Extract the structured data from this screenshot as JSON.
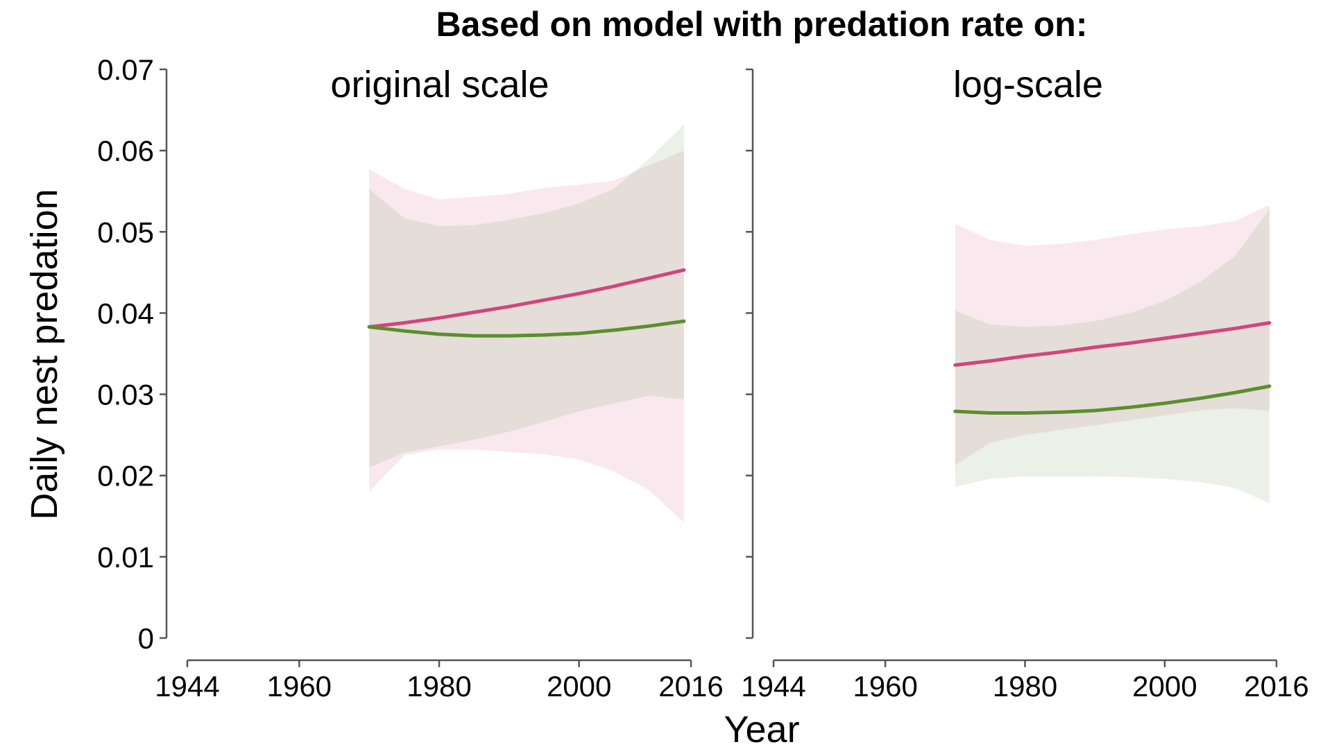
{
  "chart_data": {
    "type": "line",
    "title": "Based on model with predation rate on:",
    "ylabel": "Daily nest predation",
    "xlabel": "Year",
    "ylim": [
      0,
      0.07
    ],
    "xlim": [
      1944,
      2016
    ],
    "y_ticks": [
      "0",
      "0.01",
      "0.02",
      "0.03",
      "0.04",
      "0.05",
      "0.06",
      "0.07"
    ],
    "y_tick_values": [
      0,
      0.01,
      0.02,
      0.03,
      0.04,
      0.05,
      0.06,
      0.07
    ],
    "x_ticks": [
      "1944",
      "1960",
      "1980",
      "2000",
      "2016"
    ],
    "x_tick_values": [
      1944,
      1960,
      1980,
      2000,
      2016
    ],
    "grid": false,
    "colors": {
      "pink_line": "#d0467c",
      "pink_band": "#f9dde9",
      "green_line": "#5a8f2f",
      "green_band": "#e4eedb",
      "axis": "#555555"
    },
    "panels": [
      {
        "label": "original scale",
        "series": [
          {
            "color": "pink",
            "x": [
              1970,
              1975,
              1980,
              1985,
              1990,
              1995,
              2000,
              2005,
              2010,
              2015
            ],
            "y": [
              0.0383,
              0.0388,
              0.0394,
              0.0401,
              0.0408,
              0.0416,
              0.0424,
              0.0433,
              0.0443,
              0.0453
            ],
            "lower": [
              0.018,
              0.0225,
              0.0232,
              0.0232,
              0.0229,
              0.0226,
              0.022,
              0.0205,
              0.0182,
              0.0142
            ],
            "upper": [
              0.0577,
              0.0553,
              0.054,
              0.0543,
              0.0547,
              0.0554,
              0.0558,
              0.0563,
              0.0582,
              0.06
            ]
          },
          {
            "color": "green",
            "x": [
              1970,
              1975,
              1980,
              1985,
              1990,
              1995,
              2000,
              2005,
              2010,
              2015
            ],
            "y": [
              0.0383,
              0.0378,
              0.0374,
              0.0372,
              0.0372,
              0.0373,
              0.0375,
              0.0379,
              0.0384,
              0.039
            ],
            "lower": [
              0.021,
              0.0228,
              0.0236,
              0.0244,
              0.0254,
              0.0266,
              0.0279,
              0.0289,
              0.0298,
              0.0294
            ],
            "upper": [
              0.0553,
              0.0517,
              0.0507,
              0.0508,
              0.0515,
              0.0523,
              0.0535,
              0.0553,
              0.059,
              0.0632
            ]
          }
        ]
      },
      {
        "label": "log-scale",
        "series": [
          {
            "color": "pink",
            "x": [
              1970,
              1975,
              1980,
              1985,
              1990,
              1995,
              2000,
              2005,
              2010,
              2015
            ],
            "y": [
              0.0336,
              0.0341,
              0.0347,
              0.0352,
              0.0358,
              0.0363,
              0.0369,
              0.0375,
              0.0381,
              0.0388
            ],
            "lower": [
              0.0213,
              0.024,
              0.025,
              0.0256,
              0.0262,
              0.0268,
              0.0274,
              0.028,
              0.0283,
              0.028
            ],
            "upper": [
              0.051,
              0.049,
              0.0483,
              0.0485,
              0.049,
              0.0497,
              0.0503,
              0.0507,
              0.0513,
              0.0533
            ]
          },
          {
            "color": "green",
            "x": [
              1970,
              1975,
              1980,
              1985,
              1990,
              1995,
              2000,
              2005,
              2010,
              2015
            ],
            "y": [
              0.0279,
              0.0277,
              0.0277,
              0.0278,
              0.028,
              0.0284,
              0.0289,
              0.0295,
              0.0302,
              0.031
            ],
            "lower": [
              0.0186,
              0.0196,
              0.0199,
              0.0199,
              0.0199,
              0.0198,
              0.0196,
              0.0192,
              0.0185,
              0.0166
            ],
            "upper": [
              0.0403,
              0.0386,
              0.0383,
              0.0385,
              0.039,
              0.04,
              0.0415,
              0.0438,
              0.047,
              0.0528
            ]
          }
        ]
      }
    ]
  }
}
